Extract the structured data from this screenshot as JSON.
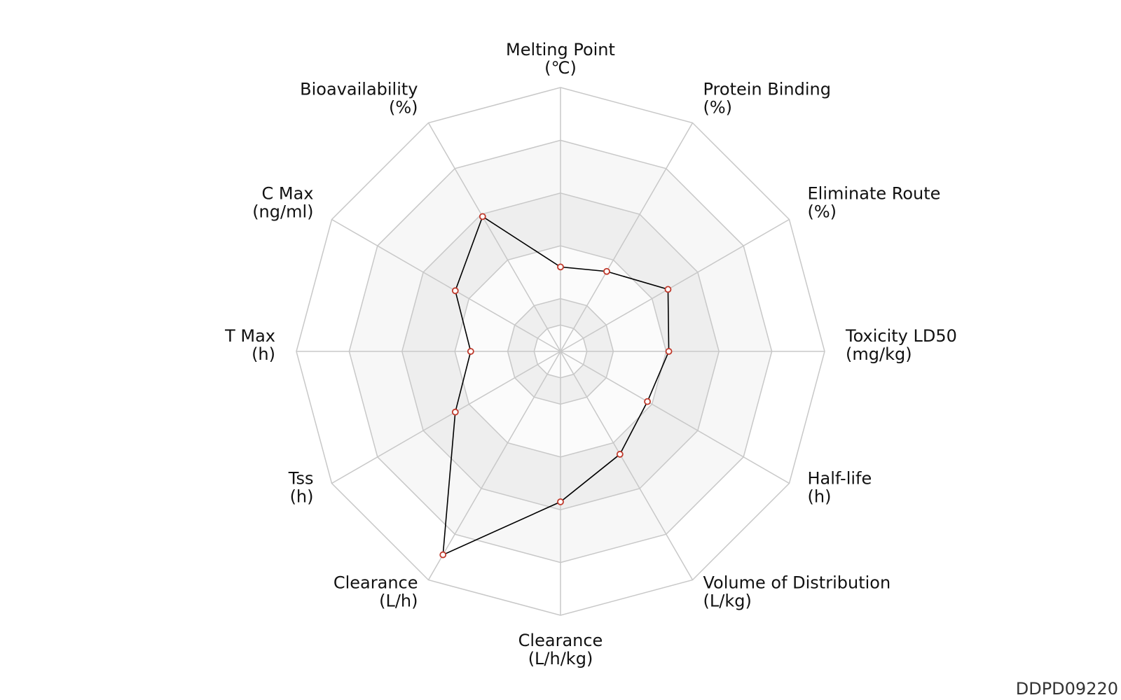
{
  "chart_data": {
    "type": "radar",
    "axes": [
      {
        "label": "Melting Point",
        "unit": "(℃)"
      },
      {
        "label": "Protein Binding",
        "unit": "(%)"
      },
      {
        "label": "Eliminate Route",
        "unit": "(%)"
      },
      {
        "label": "Toxicity LD50",
        "unit": "(mg/kg)"
      },
      {
        "label": "Half-life",
        "unit": "(h)"
      },
      {
        "label": "Volume of Distribution",
        "unit": "(L/kg)"
      },
      {
        "label": "Clearance",
        "unit": "(L/h/kg)"
      },
      {
        "label": "Clearance",
        "unit": "(L/h)"
      },
      {
        "label": "Tss",
        "unit": "(h)"
      },
      {
        "label": "T Max",
        "unit": "(h)"
      },
      {
        "label": "C Max",
        "unit": "(ng/ml)"
      },
      {
        "label": "Bioavailability",
        "unit": "(%)"
      }
    ],
    "values": [
      0.32,
      0.35,
      0.47,
      0.41,
      0.38,
      0.45,
      0.57,
      0.89,
      0.46,
      0.34,
      0.46,
      0.59
    ],
    "rings": 5,
    "range": [
      0,
      1
    ],
    "ring_fills": [
      "#ffffff",
      "#f7f7f7",
      "#eeeeee",
      "#fbfbfb",
      "#efefef",
      "#fcfcfc"
    ],
    "grid_color": "#c8c8c8",
    "line_color": "#000000",
    "marker_color": "#c0392b"
  },
  "footer": {
    "code": "DDPD09220"
  }
}
